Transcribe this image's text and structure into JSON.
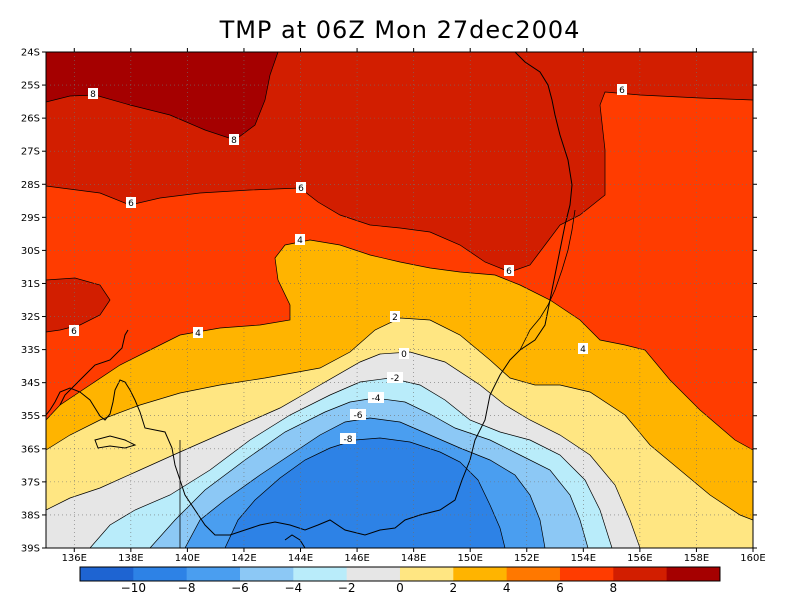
{
  "title": "TMP at 06Z Mon 27dec2004",
  "lat_ticks": [
    "24S",
    "25S",
    "26S",
    "27S",
    "28S",
    "29S",
    "30S",
    "31S",
    "32S",
    "33S",
    "34S",
    "35S",
    "36S",
    "37S",
    "38S",
    "39S"
  ],
  "lon_ticks": [
    "136E",
    "138E",
    "140E",
    "142E",
    "144E",
    "146E",
    "148E",
    "150E",
    "152E",
    "154E",
    "156E",
    "158E",
    "160E"
  ],
  "contour_labels": [
    {
      "text": "8"
    },
    {
      "text": "8"
    },
    {
      "text": "6"
    },
    {
      "text": "6"
    },
    {
      "text": "6"
    },
    {
      "text": "6"
    },
    {
      "text": "6"
    },
    {
      "text": "4"
    },
    {
      "text": "4"
    },
    {
      "text": "4"
    },
    {
      "text": "2"
    },
    {
      "text": "0"
    },
    {
      "text": "-2"
    },
    {
      "text": "-4"
    },
    {
      "text": "-6"
    },
    {
      "text": "-8"
    }
  ],
  "colorbar": {
    "colors": [
      "#1e64d2",
      "#2d82e6",
      "#4a9ef0",
      "#8cc8f5",
      "#b9ecfa",
      "#e6e6e6",
      "#ffe682",
      "#ffb400",
      "#ff7800",
      "#ff3c00",
      "#d21e00",
      "#a50000"
    ],
    "labels": [
      "-10",
      "-8",
      "-6",
      "-4",
      "-2",
      "0",
      "2",
      "4",
      "6",
      "8"
    ]
  },
  "chart_data": {
    "type": "map",
    "title": "TMP at 06Z Mon 27dec2004",
    "variable": "TMP",
    "lon_range": [
      135,
      160
    ],
    "lat_range": [
      -39,
      -24
    ],
    "contour_levels": [
      -10,
      -8,
      -6,
      -4,
      -2,
      0,
      2,
      4,
      6,
      8
    ],
    "grid": true
  }
}
